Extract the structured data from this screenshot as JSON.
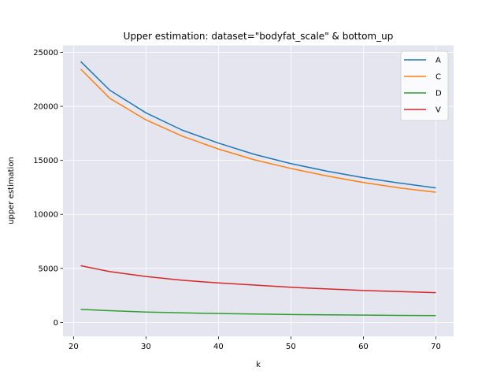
{
  "chart_data": {
    "type": "line",
    "title": "Upper estimation: dataset=\"bodyfat_scale\" & bottom_up",
    "xlabel": "k",
    "ylabel": "upper estimation",
    "xlim": [
      18.55,
      72.45
    ],
    "ylim": [
      -1300,
      25650
    ],
    "xticks": [
      20,
      30,
      40,
      50,
      60,
      70
    ],
    "yticks": [
      0,
      5000,
      10000,
      15000,
      20000,
      25000
    ],
    "grid": true,
    "legend_position": "top-right",
    "x": [
      21,
      25,
      30,
      35,
      40,
      45,
      50,
      55,
      60,
      65,
      70
    ],
    "series": [
      {
        "name": "A",
        "color": "#1f77b4",
        "values": [
          24150,
          21500,
          19400,
          17800,
          16600,
          15550,
          14700,
          14000,
          13400,
          12900,
          12450
        ]
      },
      {
        "name": "C",
        "color": "#ff7f0e",
        "values": [
          23450,
          20750,
          18750,
          17250,
          16050,
          15050,
          14250,
          13550,
          12950,
          12450,
          12050
        ]
      },
      {
        "name": "D",
        "color": "#2ca02c",
        "values": [
          1200,
          1080,
          960,
          880,
          820,
          770,
          730,
          700,
          670,
          650,
          630
        ]
      },
      {
        "name": "V",
        "color": "#d62728",
        "values": [
          5250,
          4700,
          4250,
          3900,
          3650,
          3450,
          3250,
          3100,
          2950,
          2850,
          2750
        ]
      }
    ]
  }
}
